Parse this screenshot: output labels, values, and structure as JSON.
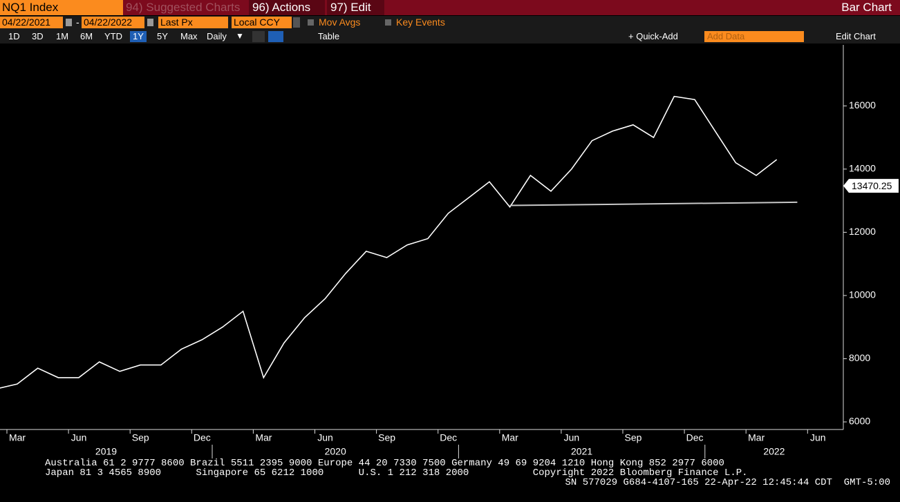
{
  "header": {
    "ticker": "NQ1 Index",
    "suggested": "94) Suggested Charts",
    "actions": "96) Actions",
    "edit": "97) Edit",
    "view": "Bar Chart"
  },
  "controls": {
    "start_date": "04/22/2021",
    "end_date": "04/22/2022",
    "field": "Last Px",
    "currency": "Local CCY",
    "mov_avgs": "Mov Avgs",
    "key_events": "Key Events",
    "ranges": [
      "1D",
      "3D",
      "1M",
      "6M",
      "YTD",
      "1Y",
      "5Y",
      "Max"
    ],
    "active_range": "1Y",
    "frequency": "Daily",
    "table": "Table",
    "quick_add": "+ Quick-Add",
    "add_data": "Add Data",
    "edit_chart": "Edit Chart"
  },
  "chart_data": {
    "type": "line",
    "x": [
      "2019-02",
      "2019-03",
      "2019-04",
      "2019-05",
      "2019-06",
      "2019-07",
      "2019-08",
      "2019-09",
      "2019-10",
      "2019-11",
      "2019-12",
      "2020-01",
      "2020-02",
      "2020-03",
      "2020-04",
      "2020-05",
      "2020-06",
      "2020-07",
      "2020-08",
      "2020-09",
      "2020-10",
      "2020-11",
      "2020-12",
      "2021-01",
      "2021-02",
      "2021-03",
      "2021-04",
      "2021-05",
      "2021-06",
      "2021-07",
      "2021-08",
      "2021-09",
      "2021-10",
      "2021-11",
      "2021-12",
      "2022-01",
      "2022-02",
      "2022-03",
      "2022-04"
    ],
    "series": [
      {
        "name": "NQ1 Index",
        "color": "#ffffff",
        "values": [
          7050,
          7200,
          7700,
          7400,
          7400,
          7900,
          7600,
          7800,
          7800,
          8300,
          8600,
          9000,
          9500,
          7400,
          8500,
          9300,
          9900,
          10700,
          11400,
          11200,
          11600,
          11800,
          12600,
          13100,
          13600,
          12800,
          13800,
          13300,
          14000,
          14900,
          15200,
          15400,
          15000,
          16300,
          16200,
          15200,
          14200,
          13800,
          14300
        ]
      }
    ],
    "last_value": 13470.25,
    "trendline": {
      "x": [
        "2021-03",
        "2022-05"
      ],
      "values": [
        12850,
        12950
      ],
      "color": "#c8c8c8"
    },
    "ylim": [
      5760,
      17930
    ],
    "yticks": [
      6000,
      8000,
      10000,
      12000,
      14000,
      16000
    ],
    "xticks": [
      {
        "value": "2019-03",
        "label": "Mar"
      },
      {
        "value": "2019-06",
        "label": "Jun"
      },
      {
        "value": "2019-09",
        "label": "Sep"
      },
      {
        "value": "2019-12",
        "label": "Dec"
      },
      {
        "value": "2020-03",
        "label": "Mar"
      },
      {
        "value": "2020-06",
        "label": "Jun"
      },
      {
        "value": "2020-09",
        "label": "Sep"
      },
      {
        "value": "2020-12",
        "label": "Dec"
      },
      {
        "value": "2021-03",
        "label": "Mar"
      },
      {
        "value": "2021-06",
        "label": "Jun"
      },
      {
        "value": "2021-09",
        "label": "Sep"
      },
      {
        "value": "2021-12",
        "label": "Dec"
      },
      {
        "value": "2022-03",
        "label": "Mar"
      },
      {
        "value": "2022-06",
        "label": "Jun"
      }
    ],
    "years": [
      "2019",
      "2020",
      "2021",
      "2022"
    ],
    "grid": false
  },
  "footer": [
    "Australia 61 2 9777 8600 Brazil 5511 2395 9000 Europe 44 20 7330 7500 Germany 49 69 9204 1210 Hong Kong 852 2977 6000",
    "Japan 81 3 4565 8900      Singapore 65 6212 1000      U.S. 1 212 318 2000           Copyright 2022 Bloomberg Finance L.P.",
    "SN 577029 G684-4107-165 22-Apr-22 12:45:44 CDT  GMT-5:00"
  ]
}
